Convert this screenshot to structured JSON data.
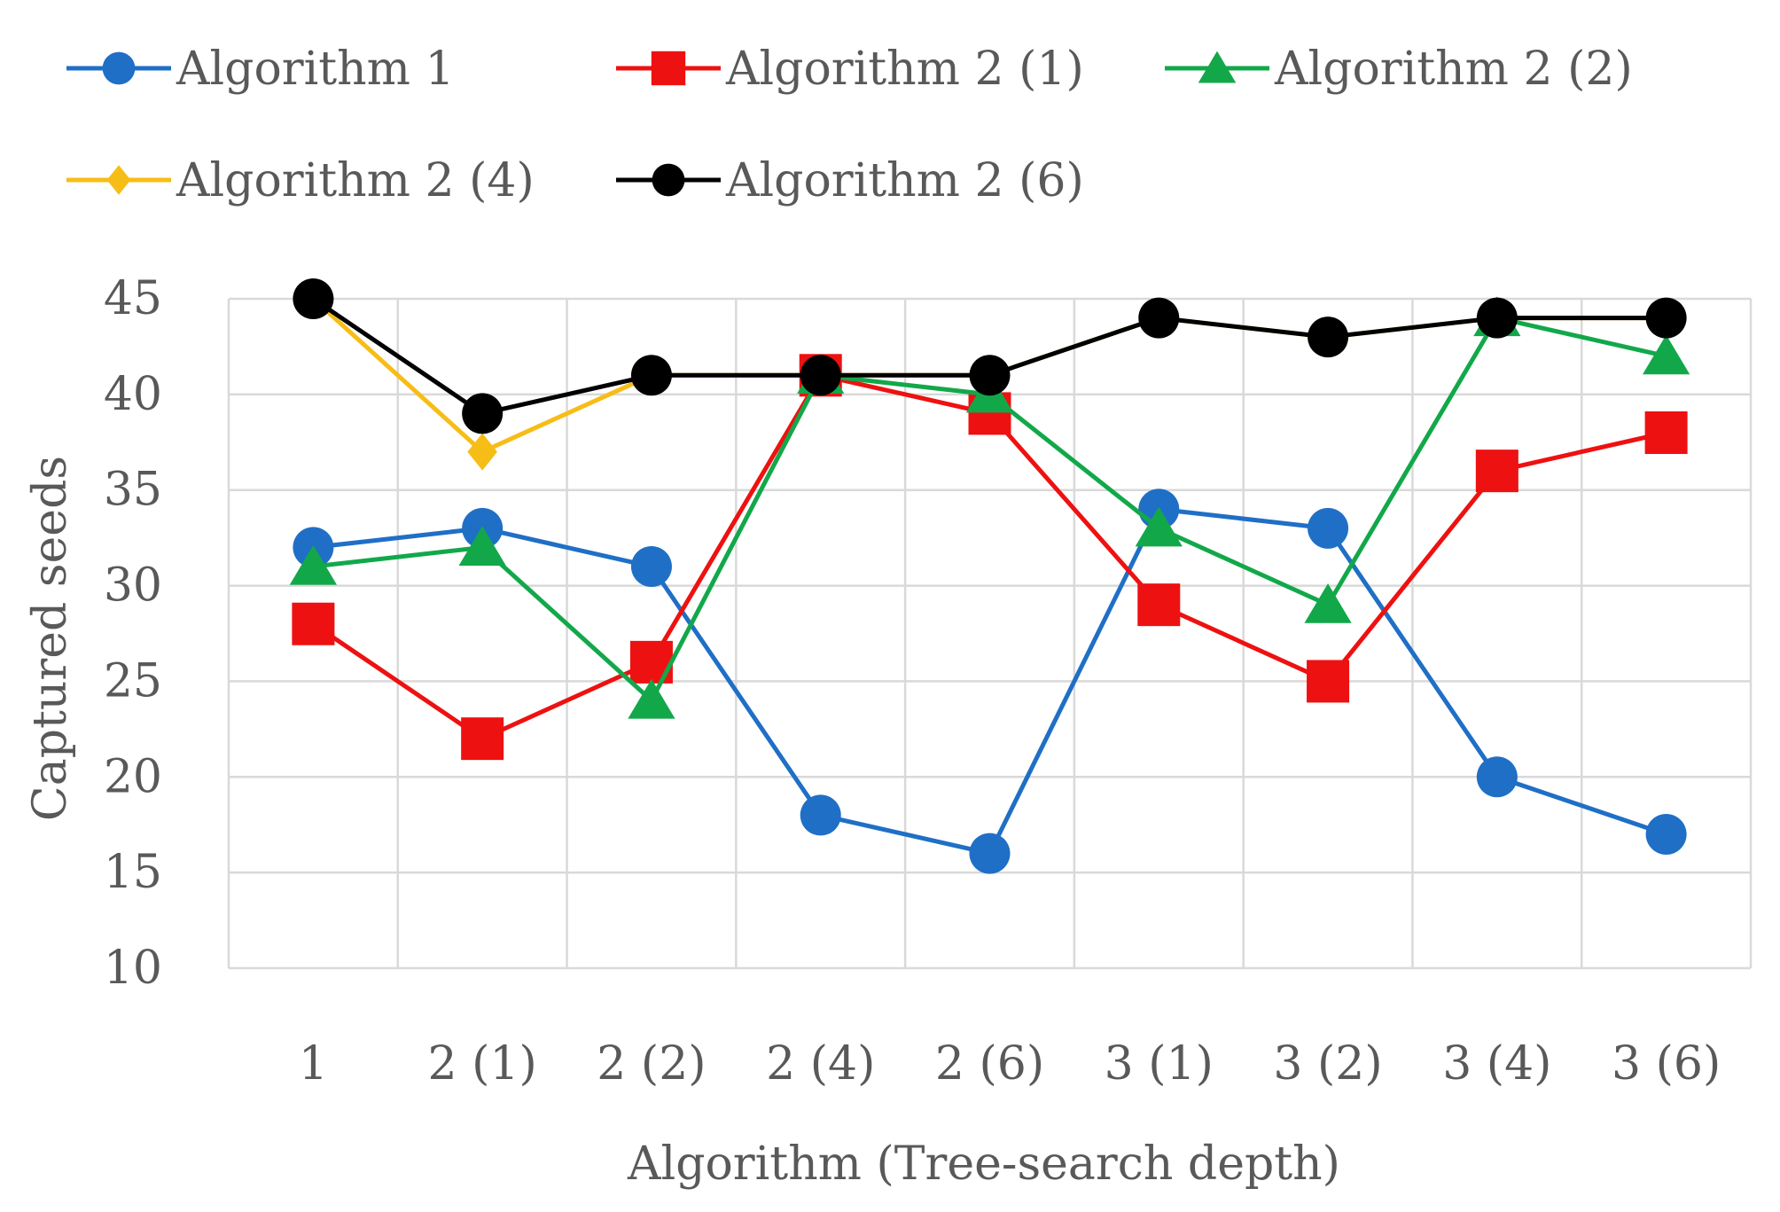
{
  "chart_data": {
    "type": "line",
    "xlabel": "Algorithm  (Tree-search  depth)",
    "ylabel": "Captured  seeds",
    "categories": [
      "1",
      "2 (1)",
      "2 (2)",
      "2 (4)",
      "2 (6)",
      "3 (1)",
      "3 (2)",
      "3 (4)",
      "3 (6)"
    ],
    "ylim": [
      10,
      45
    ],
    "yticks": [
      10,
      15,
      20,
      25,
      30,
      35,
      40,
      45
    ],
    "grid": true,
    "legend_position": "top",
    "series": [
      {
        "name": "Algorithm 1",
        "color": "#1f6fc6",
        "marker": "circle",
        "values": [
          32,
          33,
          31,
          18,
          16,
          34,
          33,
          20,
          17
        ]
      },
      {
        "name": "Algorithm 2 (1)",
        "color": "#ee1111",
        "marker": "square",
        "values": [
          28,
          22,
          26,
          41,
          39,
          29,
          25,
          36,
          38
        ]
      },
      {
        "name": "Algorithm 2 (2)",
        "color": "#12a84a",
        "marker": "triangle",
        "values": [
          31,
          32,
          24,
          41,
          40,
          33,
          29,
          44,
          42
        ]
      },
      {
        "name": "Algorithm 2 (4)",
        "color": "#f7bd17",
        "marker": "diamond",
        "values": [
          45,
          37,
          41,
          41,
          41,
          44,
          43,
          44,
          44
        ]
      },
      {
        "name": "Algorithm 2 (6)",
        "color": "#000000",
        "marker": "circle",
        "values": [
          45,
          39,
          41,
          41,
          41,
          44,
          43,
          44,
          44
        ]
      }
    ]
  }
}
